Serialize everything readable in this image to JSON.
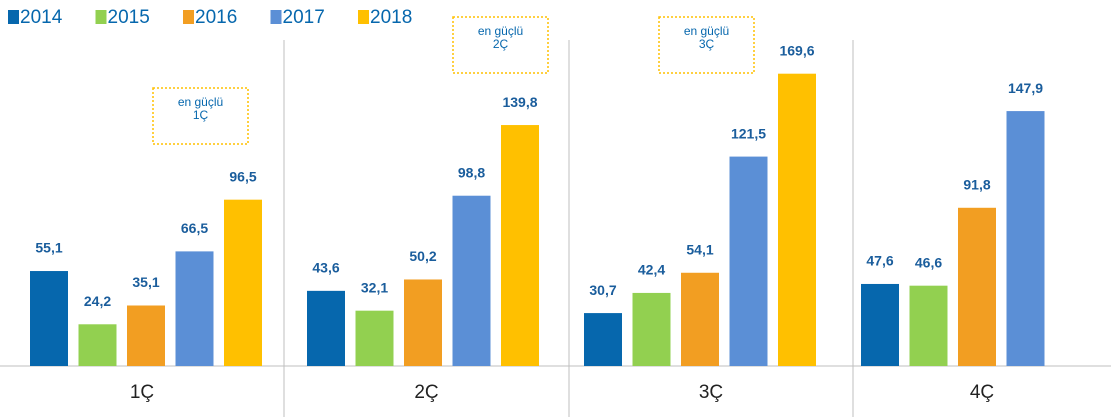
{
  "chart_data": {
    "type": "bar",
    "categories": [
      "1Ç",
      "2Ç",
      "3Ç",
      "4Ç"
    ],
    "series": [
      {
        "name": "2014",
        "color": "#0667ad",
        "values": [
          55.1,
          43.6,
          30.7,
          47.6
        ],
        "value_labels": [
          "55,1",
          "43,6",
          "30,7",
          "47,6"
        ]
      },
      {
        "name": "2015",
        "color": "#92d050",
        "values": [
          24.2,
          32.1,
          42.4,
          46.6
        ],
        "value_labels": [
          "24,2",
          "32,1",
          "42,4",
          "46,6"
        ]
      },
      {
        "name": "2016",
        "color": "#f29e22",
        "values": [
          35.1,
          50.2,
          54.1,
          91.8
        ],
        "value_labels": [
          "35,1",
          "50,2",
          "54,1",
          "91,8"
        ]
      },
      {
        "name": "2017",
        "color": "#5b8fd6",
        "values": [
          66.5,
          98.8,
          121.5,
          147.9
        ],
        "value_labels": [
          "66,5",
          "98,8",
          "121,5",
          "147,9"
        ]
      },
      {
        "name": "2018",
        "color": "#ffc000",
        "values": [
          96.5,
          139.8,
          169.6,
          null
        ],
        "value_labels": [
          "96,5",
          "139,8",
          "169,6",
          null
        ]
      }
    ],
    "ylim": [
      0,
      170
    ],
    "annotations": [
      {
        "lines": [
          "en güçlü",
          "1Ç"
        ]
      },
      {
        "lines": [
          "en güçlü",
          "2Ç"
        ]
      },
      {
        "lines": [
          "en güçlü",
          "3Ç"
        ]
      }
    ]
  }
}
